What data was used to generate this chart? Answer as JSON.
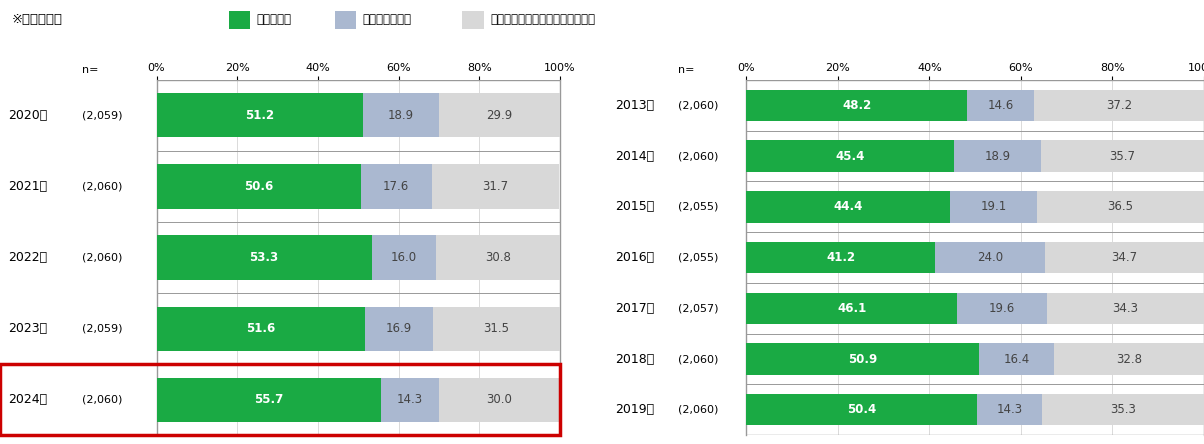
{
  "left_chart": {
    "years": [
      "2020年",
      "2021年",
      "2022年",
      "2023年",
      "2024年"
    ],
    "ns": [
      "(2,059)",
      "(2,060)",
      "(2,060)",
      "(2,059)",
      "(2,060)"
    ],
    "green": [
      51.2,
      50.6,
      53.3,
      51.6,
      55.7
    ],
    "blue": [
      18.9,
      17.6,
      16.0,
      16.9,
      14.3
    ],
    "gray": [
      29.9,
      31.7,
      30.8,
      31.5,
      30.0
    ]
  },
  "right_chart": {
    "years": [
      "2013年",
      "2014年",
      "2015年",
      "2016年",
      "2017年",
      "2018年",
      "2019年"
    ],
    "ns": [
      "(2,060)",
      "(2,060)",
      "(2,055)",
      "(2,055)",
      "(2,057)",
      "(2,060)",
      "(2,060)"
    ],
    "green": [
      48.2,
      45.4,
      44.4,
      41.2,
      46.1,
      50.9,
      50.4
    ],
    "blue": [
      14.6,
      18.9,
      19.1,
      24.0,
      19.6,
      16.4,
      14.3
    ],
    "gray": [
      37.2,
      35.7,
      36.5,
      34.7,
      34.3,
      32.8,
      35.3
    ]
  },
  "legend_labels": [
    "利用したい",
    "利用したくない",
    "どちらともいえない・わからない"
  ],
  "colors": {
    "green": "#1aaa44",
    "blue": "#aab8d0",
    "gray": "#d8d8d8",
    "highlight_border": "#cc0000",
    "grid_line": "#cccccc",
    "table_border": "#999999"
  },
  "header_text": "※全体ベース",
  "x_ticks": [
    0,
    20,
    40,
    60,
    80,
    100
  ],
  "x_tick_labels": [
    "0%",
    "20%",
    "40%",
    "60%",
    "80%",
    "100%"
  ]
}
